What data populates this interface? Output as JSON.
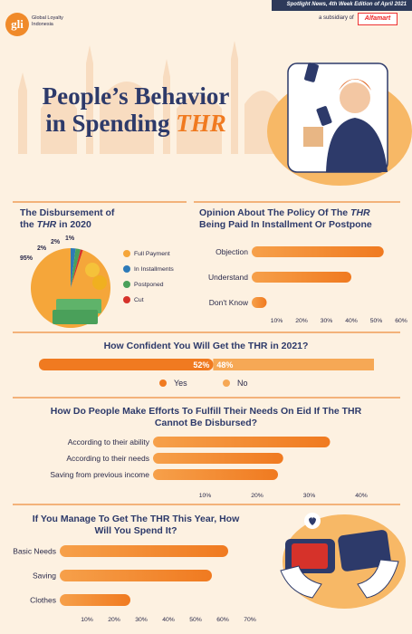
{
  "header": {
    "edition": "Spotlight News, 4th Week Edition of April 2021",
    "logo": "gli",
    "logo_text": "Global Loyalty Indonesia",
    "subsidiary": "a subsidiary of",
    "subsidiary_brand": "Alfamart"
  },
  "title": {
    "line1": "People’s Behavior",
    "line2_prefix": "in Spending ",
    "line2_emph": "THR"
  },
  "colors": {
    "navy": "#2d3a6a",
    "orange": "#f07a20",
    "bar_start": "#f6a04a",
    "bar_end": "#f07a20",
    "bg": "#fdf1e1"
  },
  "chart_data": [
    {
      "type": "pie",
      "title": "The Disbursement of the THR in 2020",
      "slices": [
        {
          "name": "Full Payment",
          "value": 95,
          "label": "95%",
          "color": "#f5a63a"
        },
        {
          "name": "In Installments",
          "value": 2,
          "label": "2%",
          "color": "#2d7ab8"
        },
        {
          "name": "Postponed",
          "value": 2,
          "label": "2%",
          "color": "#4aa05a"
        },
        {
          "name": "Cut",
          "value": 1,
          "label": "1%",
          "color": "#d6322a"
        }
      ]
    },
    {
      "type": "bar",
      "orientation": "horizontal",
      "title": "Opinion About The Policy Of The THR Being Paid In Installment Or Postpone",
      "categories": [
        "Objection",
        "Understand",
        "Don't Know"
      ],
      "values": [
        53,
        40,
        6
      ],
      "xticks": [
        "10%",
        "20%",
        "30%",
        "40%",
        "50%",
        "60%"
      ],
      "xlim": [
        0,
        60
      ]
    },
    {
      "type": "bar",
      "orientation": "horizontal-stacked",
      "title": "How Confident You Will Get the THR in 2021?",
      "series": [
        {
          "name": "Yes",
          "value": 52,
          "label": "52%",
          "color": "#f07a20"
        },
        {
          "name": "No",
          "value": 48,
          "label": "48%",
          "color": "#f6a855"
        }
      ]
    },
    {
      "type": "bar",
      "orientation": "horizontal",
      "title": "How Do People Make Efforts To Fulfill Their Needs On Eid If The THR Cannot Be Disbursed?",
      "categories": [
        "According to their ability",
        "According to their needs",
        "Saving from previous income"
      ],
      "values": [
        34,
        25,
        24
      ],
      "xticks": [
        "10%",
        "20%",
        "30%",
        "40%"
      ],
      "xlim": [
        0,
        40
      ]
    },
    {
      "type": "bar",
      "orientation": "horizontal",
      "title": "If You Manage To Get The THR This Year, How Will You Spend It?",
      "categories": [
        "Basic Needs",
        "Saving",
        "Clothes"
      ],
      "values": [
        62,
        56,
        26
      ],
      "xticks": [
        "10%",
        "20%",
        "30%",
        "40%",
        "50%",
        "60%",
        "70%"
      ],
      "xlim": [
        0,
        70
      ]
    }
  ]
}
